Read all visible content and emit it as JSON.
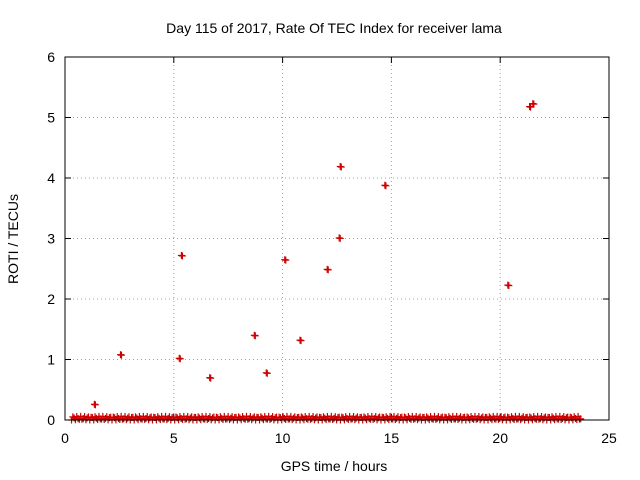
{
  "chart_data": {
    "type": "scatter",
    "title": "Day 115 of 2017, Rate Of TEC Index for receiver lama",
    "xlabel": "GPS time / hours",
    "ylabel": "ROTI / TECUs",
    "xlim": [
      0,
      25
    ],
    "ylim": [
      0,
      6
    ],
    "xticks": [
      0,
      5,
      10,
      15,
      20,
      25
    ],
    "yticks": [
      0,
      1,
      2,
      3,
      4,
      5,
      6
    ],
    "grid": true,
    "marker": "+",
    "color": "#cc0000",
    "points": [
      {
        "x": 1.35,
        "y": 0.26
      },
      {
        "x": 2.55,
        "y": 1.08
      },
      {
        "x": 5.25,
        "y": 1.02
      },
      {
        "x": 5.35,
        "y": 2.72
      },
      {
        "x": 6.65,
        "y": 0.7
      },
      {
        "x": 8.7,
        "y": 1.4
      },
      {
        "x": 9.25,
        "y": 0.78
      },
      {
        "x": 10.1,
        "y": 2.65
      },
      {
        "x": 10.8,
        "y": 1.32
      },
      {
        "x": 12.05,
        "y": 2.49
      },
      {
        "x": 12.6,
        "y": 3.01
      },
      {
        "x": 12.65,
        "y": 4.19
      },
      {
        "x": 14.7,
        "y": 3.88
      },
      {
        "x": 20.35,
        "y": 2.23
      },
      {
        "x": 21.35,
        "y": 5.18
      },
      {
        "x": 21.5,
        "y": 5.23
      }
    ],
    "baseline_band": {
      "x_start": 0.3,
      "x_end": 23.7,
      "y_min": 0.0,
      "y_max": 0.06
    }
  }
}
